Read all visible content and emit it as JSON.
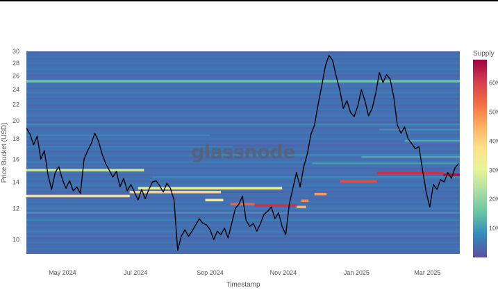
{
  "watermark": "glassnode",
  "chart_data": {
    "type": "heatmap",
    "title": "",
    "xlabel": "Timestamp",
    "ylabel": "Price Bucket (USD)",
    "y_scale": "log",
    "ylim": [
      9.2,
      30
    ],
    "xlim": [
      "2024-04-01",
      "2025-03-28"
    ],
    "x_ticks": [
      {
        "date": "2024-05-01",
        "label": "May 2024"
      },
      {
        "date": "2024-07-01",
        "label": "Jul 2024"
      },
      {
        "date": "2024-09-01",
        "label": "Sep 2024"
      },
      {
        "date": "2024-11-01",
        "label": "Nov 2024"
      },
      {
        "date": "2025-01-01",
        "label": "Jan 2025"
      },
      {
        "date": "2025-03-01",
        "label": "Mar 2025"
      }
    ],
    "y_ticks": [
      10,
      12,
      14,
      16,
      18,
      20,
      22,
      24,
      26,
      28,
      30
    ],
    "colorbar": {
      "title": "Supply",
      "ticks": [
        {
          "value": 10,
          "label": "10M"
        },
        {
          "value": 20,
          "label": "20M"
        },
        {
          "value": 30,
          "label": "30M"
        },
        {
          "value": 40,
          "label": "40M"
        },
        {
          "value": 50,
          "label": "50M"
        },
        {
          "value": 60,
          "label": "60M"
        }
      ],
      "range": [
        0,
        68
      ],
      "colorscale": [
        "#5e4fa2",
        "#3288bd",
        "#66c2a5",
        "#abdda4",
        "#e6f598",
        "#fee08b",
        "#fdae61",
        "#f46d43",
        "#d53e4f",
        "#9e0142"
      ]
    },
    "background_supply": 3,
    "bands": [
      {
        "price": 25.2,
        "start": "2024-04-01",
        "end": "2025-03-28",
        "supply": 16
      },
      {
        "price": 15.0,
        "start": "2024-04-01",
        "end": "2024-07-08",
        "supply": 26
      },
      {
        "price": 12.9,
        "start": "2024-04-01",
        "end": "2024-06-26",
        "supply": 38
      },
      {
        "price": 13.2,
        "start": "2024-06-26",
        "end": "2024-09-10",
        "supply": 40
      },
      {
        "price": 13.5,
        "start": "2024-07-03",
        "end": "2024-10-31",
        "supply": 33
      },
      {
        "price": 12.6,
        "start": "2024-08-28",
        "end": "2024-09-12",
        "supply": 34
      },
      {
        "price": 12.3,
        "start": "2024-09-18",
        "end": "2024-10-08",
        "supply": 55
      },
      {
        "price": 12.2,
        "start": "2024-10-08",
        "end": "2024-11-12",
        "supply": 62
      },
      {
        "price": 12.1,
        "start": "2024-11-12",
        "end": "2024-11-20",
        "supply": 45
      },
      {
        "price": 12.55,
        "start": "2024-11-16",
        "end": "2024-11-22",
        "supply": 50
      },
      {
        "price": 13.05,
        "start": "2024-11-27",
        "end": "2024-12-07",
        "supply": 48
      },
      {
        "price": 14.05,
        "start": "2024-12-18",
        "end": "2025-01-18",
        "supply": 58
      },
      {
        "price": 14.75,
        "start": "2025-01-18",
        "end": "2025-03-14",
        "supply": 62
      },
      {
        "price": 14.6,
        "start": "2025-03-14",
        "end": "2025-03-28",
        "supply": 66
      }
    ],
    "faint_bands": [
      {
        "price": 19.6,
        "start": "2024-04-01",
        "end": "2025-03-28",
        "supply": 9
      },
      {
        "price": 18.4,
        "start": "2024-04-01",
        "end": "2024-09-01",
        "supply": 8
      },
      {
        "price": 17.2,
        "start": "2024-04-01",
        "end": "2024-09-20",
        "supply": 8
      },
      {
        "price": 16.4,
        "start": "2024-09-01",
        "end": "2025-03-28",
        "supply": 9
      },
      {
        "price": 11.7,
        "start": "2024-04-01",
        "end": "2025-03-28",
        "supply": 10
      },
      {
        "price": 11.2,
        "start": "2024-04-01",
        "end": "2025-03-28",
        "supply": 8
      },
      {
        "price": 14.4,
        "start": "2024-07-15",
        "end": "2025-03-28",
        "supply": 9
      },
      {
        "price": 15.6,
        "start": "2024-11-25",
        "end": "2025-03-28",
        "supply": 12
      },
      {
        "price": 16.2,
        "start": "2025-01-05",
        "end": "2025-03-28",
        "supply": 14
      },
      {
        "price": 17.8,
        "start": "2025-02-10",
        "end": "2025-03-28",
        "supply": 14
      },
      {
        "price": 19.0,
        "start": "2025-01-20",
        "end": "2025-03-28",
        "supply": 10
      },
      {
        "price": 22.5,
        "start": "2024-04-01",
        "end": "2025-03-28",
        "supply": 5
      }
    ],
    "series": [
      {
        "type": "line",
        "points": [
          [
            "2024-04-01",
            19.2
          ],
          [
            "2024-04-04",
            18.5
          ],
          [
            "2024-04-07",
            17.4
          ],
          [
            "2024-04-10",
            18.3
          ],
          [
            "2024-04-13",
            16.0
          ],
          [
            "2024-04-16",
            16.8
          ],
          [
            "2024-04-19",
            14.6
          ],
          [
            "2024-04-22",
            13.4
          ],
          [
            "2024-04-25",
            14.8
          ],
          [
            "2024-04-28",
            15.3
          ],
          [
            "2024-05-01",
            14.2
          ],
          [
            "2024-05-04",
            13.5
          ],
          [
            "2024-05-07",
            14.1
          ],
          [
            "2024-05-10",
            13.3
          ],
          [
            "2024-05-13",
            13.6
          ],
          [
            "2024-05-16",
            13.1
          ],
          [
            "2024-05-19",
            16.0
          ],
          [
            "2024-05-22",
            16.8
          ],
          [
            "2024-05-25",
            17.5
          ],
          [
            "2024-05-28",
            18.6
          ],
          [
            "2024-05-31",
            17.8
          ],
          [
            "2024-06-03",
            16.5
          ],
          [
            "2024-06-06",
            15.6
          ],
          [
            "2024-06-09",
            15.0
          ],
          [
            "2024-06-12",
            14.4
          ],
          [
            "2024-06-15",
            14.9
          ],
          [
            "2024-06-18",
            13.6
          ],
          [
            "2024-06-21",
            14.3
          ],
          [
            "2024-06-24",
            13.3
          ],
          [
            "2024-06-27",
            13.8
          ],
          [
            "2024-06-30",
            13.2
          ],
          [
            "2024-07-03",
            12.6
          ],
          [
            "2024-07-06",
            13.4
          ],
          [
            "2024-07-09",
            12.7
          ],
          [
            "2024-07-12",
            13.4
          ],
          [
            "2024-07-15",
            14.0
          ],
          [
            "2024-07-18",
            14.1
          ],
          [
            "2024-07-21",
            13.7
          ],
          [
            "2024-07-24",
            13.2
          ],
          [
            "2024-07-27",
            13.9
          ],
          [
            "2024-07-30",
            13.5
          ],
          [
            "2024-08-02",
            12.6
          ],
          [
            "2024-08-05",
            9.4
          ],
          [
            "2024-08-08",
            10.2
          ],
          [
            "2024-08-11",
            10.6
          ],
          [
            "2024-08-14",
            10.2
          ],
          [
            "2024-08-17",
            10.5
          ],
          [
            "2024-08-20",
            10.9
          ],
          [
            "2024-08-23",
            11.3
          ],
          [
            "2024-08-26",
            11.0
          ],
          [
            "2024-08-29",
            10.9
          ],
          [
            "2024-09-01",
            10.6
          ],
          [
            "2024-09-04",
            10.0
          ],
          [
            "2024-09-07",
            10.5
          ],
          [
            "2024-09-10",
            10.3
          ],
          [
            "2024-09-13",
            10.7
          ],
          [
            "2024-09-16",
            10.1
          ],
          [
            "2024-09-19",
            11.0
          ],
          [
            "2024-09-22",
            12.0
          ],
          [
            "2024-09-25",
            12.3
          ],
          [
            "2024-09-28",
            12.9
          ],
          [
            "2024-10-01",
            11.2
          ],
          [
            "2024-10-04",
            10.8
          ],
          [
            "2024-10-07",
            11.0
          ],
          [
            "2024-10-10",
            10.5
          ],
          [
            "2024-10-13",
            11.0
          ],
          [
            "2024-10-16",
            11.6
          ],
          [
            "2024-10-19",
            11.8
          ],
          [
            "2024-10-22",
            12.1
          ],
          [
            "2024-10-25",
            11.3
          ],
          [
            "2024-10-28",
            11.7
          ],
          [
            "2024-10-31",
            10.8
          ],
          [
            "2024-11-03",
            10.3
          ],
          [
            "2024-11-06",
            12.3
          ],
          [
            "2024-11-09",
            13.5
          ],
          [
            "2024-11-12",
            14.8
          ],
          [
            "2024-11-15",
            13.6
          ],
          [
            "2024-11-18",
            15.3
          ],
          [
            "2024-11-21",
            16.5
          ],
          [
            "2024-11-24",
            18.5
          ],
          [
            "2024-11-27",
            19.5
          ],
          [
            "2024-11-30",
            22.0
          ],
          [
            "2024-12-03",
            24.5
          ],
          [
            "2024-12-06",
            27.5
          ],
          [
            "2024-12-09",
            29.3
          ],
          [
            "2024-12-12",
            28.5
          ],
          [
            "2024-12-15",
            26.0
          ],
          [
            "2024-12-18",
            24.0
          ],
          [
            "2024-12-21",
            21.5
          ],
          [
            "2024-12-24",
            22.5
          ],
          [
            "2024-12-27",
            21.0
          ],
          [
            "2024-12-30",
            20.5
          ],
          [
            "2025-01-02",
            21.8
          ],
          [
            "2025-01-05",
            24.0
          ],
          [
            "2025-01-08",
            22.5
          ],
          [
            "2025-01-11",
            20.6
          ],
          [
            "2025-01-14",
            21.5
          ],
          [
            "2025-01-17",
            23.5
          ],
          [
            "2025-01-20",
            26.5
          ],
          [
            "2025-01-23",
            25.0
          ],
          [
            "2025-01-26",
            26.2
          ],
          [
            "2025-01-29",
            25.5
          ],
          [
            "2025-02-01",
            23.0
          ],
          [
            "2025-02-04",
            19.5
          ],
          [
            "2025-02-07",
            18.6
          ],
          [
            "2025-02-10",
            19.3
          ],
          [
            "2025-02-13",
            18.0
          ],
          [
            "2025-02-16",
            17.5
          ],
          [
            "2025-02-19",
            17.0
          ],
          [
            "2025-02-22",
            17.2
          ],
          [
            "2025-02-25",
            15.0
          ],
          [
            "2025-02-28",
            13.2
          ],
          [
            "2025-03-03",
            12.1
          ],
          [
            "2025-03-06",
            13.8
          ],
          [
            "2025-03-09",
            13.4
          ],
          [
            "2025-03-12",
            14.2
          ],
          [
            "2025-03-15",
            14.0
          ],
          [
            "2025-03-18",
            14.8
          ],
          [
            "2025-03-21",
            14.3
          ],
          [
            "2025-03-24",
            15.2
          ],
          [
            "2025-03-27",
            15.6
          ]
        ]
      }
    ]
  }
}
